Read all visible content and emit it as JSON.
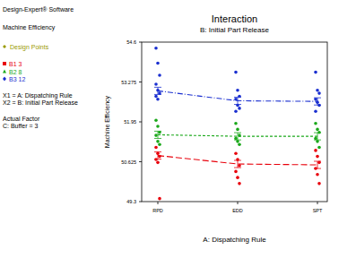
{
  "chart_data": {
    "type": "line",
    "title": "Interaction",
    "subtitle": "B: Initial Part Release",
    "x_label": "A: Dispatching Rule",
    "y_label": "Machine Efficiency",
    "annotations": [
      "Design-Expert® Software",
      "Machine Efficiency",
      "Design Points",
      "X1 = A: Dispatching Rule",
      "X2 = B: Initial Part Release",
      "Actual Factor",
      "C: Buffer = 3"
    ],
    "legend": "left",
    "categories": [
      "RPD",
      "EDD",
      "SPT"
    ],
    "ylim": [
      49.3,
      54.6
    ],
    "yticks": [
      49.3,
      50.625,
      51.95,
      53.275,
      54.6
    ],
    "series": [
      {
        "name": "B1 3",
        "color": "#e8000b",
        "marker": "square",
        "line_style": "dashed",
        "values": [
          50.83,
          50.55,
          50.52
        ],
        "errors": [
          0.12,
          0.12,
          0.12
        ],
        "points": [
          [
            51.1,
            50.9,
            50.8,
            50.7,
            50.6,
            49.4
          ],
          [
            50.9,
            50.7,
            50.5,
            50.3,
            50.1,
            49.9
          ],
          [
            51.0,
            50.8,
            50.6,
            50.4,
            50.2,
            49.9
          ]
        ]
      },
      {
        "name": "B2 8",
        "color": "#1aa81a",
        "marker": "triangle",
        "line_style": "dotted",
        "values": [
          51.52,
          51.47,
          51.47
        ],
        "errors": [
          0.12,
          0.12,
          0.12
        ],
        "points": [
          [
            52.0,
            51.8,
            51.6,
            51.5,
            51.3,
            51.2
          ],
          [
            51.9,
            51.7,
            51.5,
            51.4,
            51.3,
            51.2
          ],
          [
            51.9,
            51.7,
            51.6,
            51.4,
            51.3,
            51.1
          ]
        ]
      },
      {
        "name": "B3 12",
        "color": "#1a2fd0",
        "marker": "diamond",
        "line_style": "dashdot",
        "values": [
          52.98,
          52.65,
          52.63
        ],
        "errors": [
          0.12,
          0.12,
          0.12
        ],
        "points": [
          [
            54.4,
            53.9,
            53.5,
            53.2,
            53.0,
            52.9,
            52.8,
            52.7
          ],
          [
            53.6,
            53.0,
            52.8,
            52.7,
            52.5,
            52.4,
            52.3
          ],
          [
            53.6,
            53.0,
            52.9,
            52.7,
            52.6,
            52.5,
            52.3
          ]
        ]
      }
    ]
  }
}
